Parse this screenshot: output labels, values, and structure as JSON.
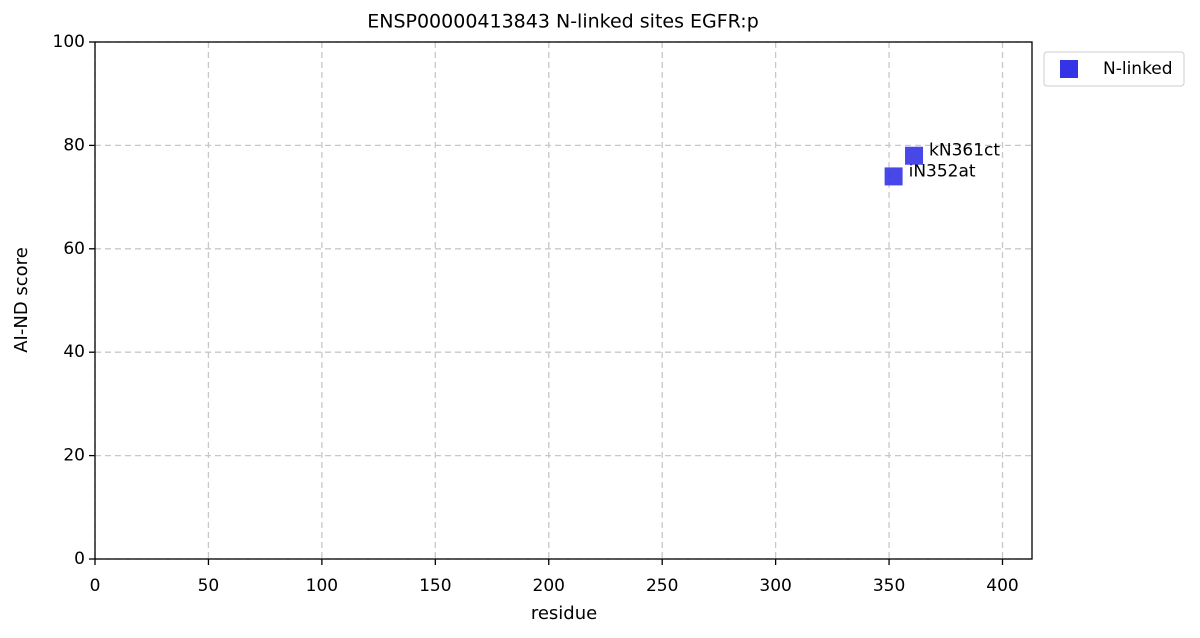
{
  "chart_data": {
    "type": "scatter",
    "title": "ENSP00000413843 N-linked sites EGFR:p",
    "xlabel": "residue",
    "ylabel": "AI-ND score",
    "series": [
      {
        "name": "N-linked",
        "color": "#3434e6",
        "x": [
          352,
          361
        ],
        "values": [
          74,
          78
        ],
        "labels": [
          "iN352at",
          "kN361ct"
        ]
      }
    ],
    "xlim": [
      0,
      413
    ],
    "ylim": [
      0,
      100
    ],
    "xticks": [
      0,
      50,
      100,
      150,
      200,
      250,
      300,
      350,
      400
    ],
    "yticks": [
      0,
      20,
      40,
      60,
      80,
      100
    ],
    "grid": true,
    "legend": "outside upper right"
  }
}
